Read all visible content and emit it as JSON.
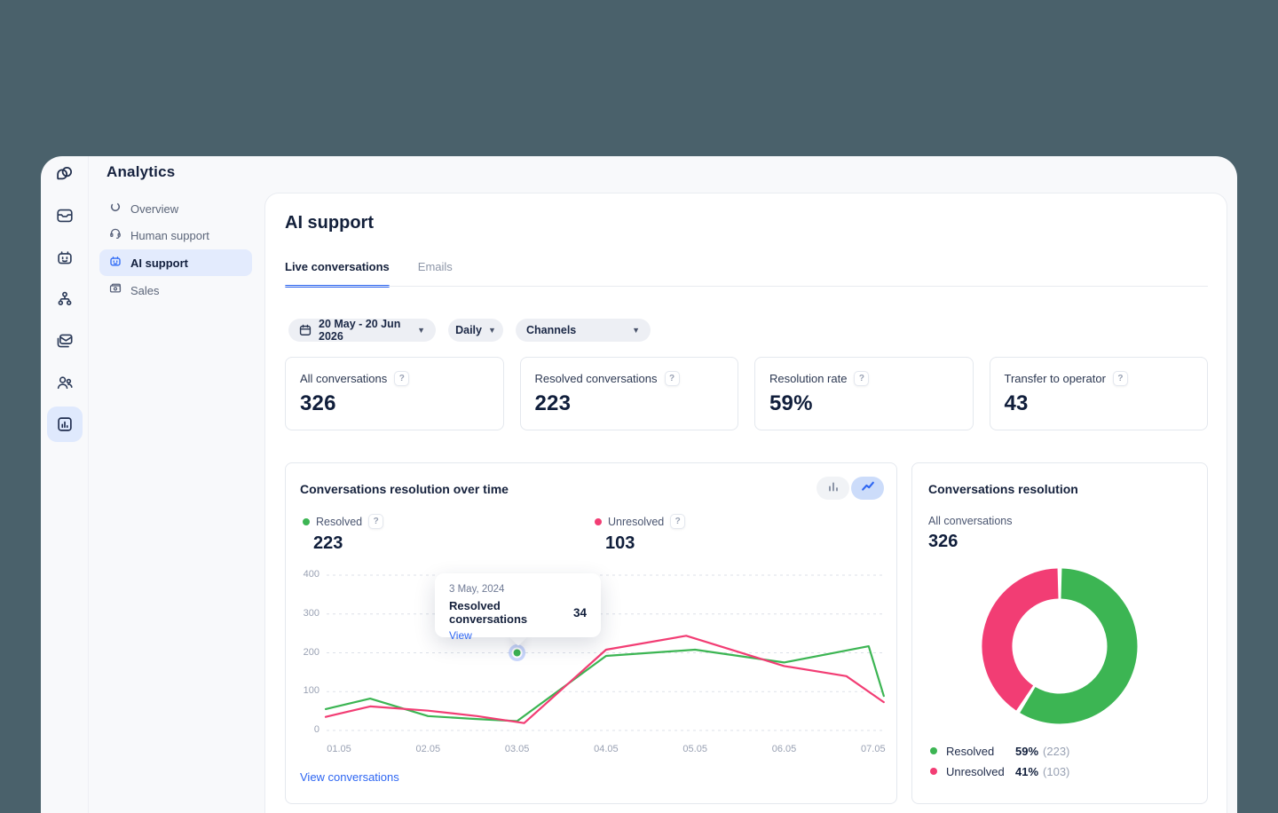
{
  "ui": {
    "help_badge": "?"
  },
  "header": {
    "title": "Analytics"
  },
  "rail": {
    "icons": [
      "logo",
      "inbox",
      "chatbot",
      "automation",
      "campaigns",
      "team",
      "reports"
    ],
    "active": "reports"
  },
  "nav": {
    "items": [
      {
        "label": "Overview",
        "icon": "overview",
        "active": false
      },
      {
        "label": "Human support",
        "icon": "headset",
        "active": false
      },
      {
        "label": "AI support",
        "icon": "robot",
        "active": true
      },
      {
        "label": "Sales",
        "icon": "banknote",
        "active": false
      }
    ]
  },
  "page": {
    "title": "AI support",
    "tabs": [
      {
        "label": "Live conversations",
        "active": true
      },
      {
        "label": "Emails",
        "active": false
      }
    ],
    "filters": {
      "date_range": "20 May - 20 Jun 2026",
      "interval": "Daily",
      "channels": "Channels"
    },
    "stats": [
      {
        "label": "All conversations",
        "value": "326"
      },
      {
        "label": "Resolved conversations",
        "value": "223"
      },
      {
        "label": "Resolution rate",
        "value": "59%"
      },
      {
        "label": "Transfer to operator",
        "value": "43"
      }
    ]
  },
  "line_card": {
    "title": "Conversations resolution over time",
    "legend": [
      {
        "name": "Resolved",
        "value": "223",
        "color": "#3cb553"
      },
      {
        "name": "Unresolved",
        "value": "103",
        "color": "#f23d74"
      }
    ],
    "tooltip": {
      "date": "3 May, 2024",
      "label": "Resolved conversations",
      "value": "34",
      "link": "View"
    },
    "footer_link": "View conversations"
  },
  "donut_card": {
    "title": "Conversations resolution",
    "subtitle": "All conversations",
    "total": "326",
    "legend": [
      {
        "name": "Resolved",
        "pct": "59%",
        "count": "(223)",
        "color": "#3cb553"
      },
      {
        "name": "Unresolved",
        "pct": "41%",
        "count": "(103)",
        "color": "#f23d74"
      }
    ]
  },
  "chart_data": [
    {
      "type": "line",
      "title": "Conversations resolution over time",
      "x_ticks": [
        "01.05",
        "02.05",
        "03.05",
        "04.05",
        "05.05",
        "06.05",
        "07.05"
      ],
      "y_ticks": [
        0,
        100,
        200,
        300,
        400
      ],
      "ylim": [
        0,
        400
      ],
      "grid": "horizontal-dashed",
      "legend_position": "top",
      "series": [
        {
          "name": "Resolved",
          "color": "#3cb553",
          "total": 223,
          "points": [
            [
              0.85,
              55
            ],
            [
              1.35,
              82
            ],
            [
              2,
              37
            ],
            [
              2.5,
              30
            ],
            [
              3,
              24
            ],
            [
              4,
              192
            ],
            [
              5,
              208
            ],
            [
              6,
              175
            ],
            [
              6.95,
              217
            ],
            [
              7.12,
              89
            ]
          ]
        },
        {
          "name": "Unresolved",
          "color": "#f23d74",
          "total": 103,
          "points": [
            [
              0.85,
              35
            ],
            [
              1.35,
              62
            ],
            [
              2,
              51
            ],
            [
              2.55,
              37
            ],
            [
              3.08,
              19
            ],
            [
              4,
              208
            ],
            [
              4.9,
              244
            ],
            [
              6,
              166
            ],
            [
              6.7,
              140
            ],
            [
              7.12,
              73
            ]
          ]
        }
      ],
      "marker": {
        "x": 3,
        "y": 200,
        "color": "#3cb553"
      },
      "tooltip": {
        "date": "3 May, 2024",
        "label": "Resolved conversations",
        "value": 34
      }
    },
    {
      "type": "pie",
      "donut": true,
      "title": "Conversations resolution",
      "total": 326,
      "start": "top",
      "direction": "clockwise",
      "slices": [
        {
          "label": "Resolved",
          "pct": 59,
          "count": 223,
          "color": "#3cb553"
        },
        {
          "label": "Unresolved",
          "pct": 41,
          "count": 103,
          "color": "#f23d74"
        }
      ]
    }
  ]
}
